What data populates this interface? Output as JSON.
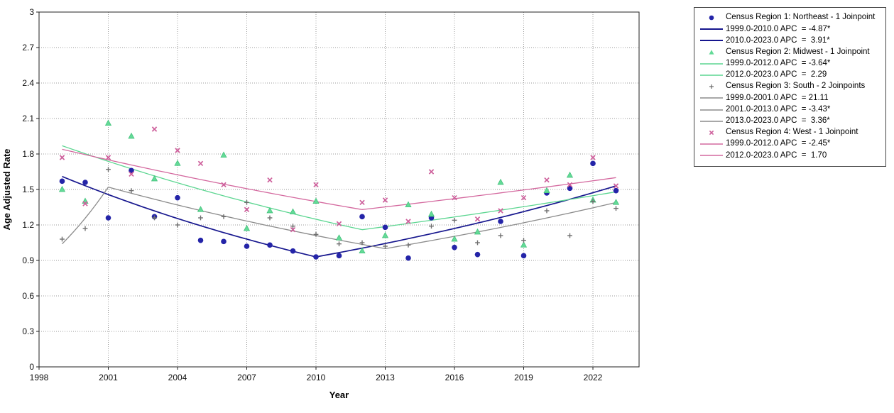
{
  "chart_data": {
    "type": "scatter",
    "title": "",
    "xlabel": "Year",
    "ylabel": "Age Adjusted Rate",
    "xlim": [
      1998,
      2024.0
    ],
    "ylim": [
      0,
      3
    ],
    "grid": true,
    "legend_position": "top-right",
    "xticks": [
      1998,
      2001,
      2004,
      2007,
      2010,
      2013,
      2016,
      2019,
      2022
    ],
    "yticks": [
      0,
      0.3,
      0.6,
      0.9,
      1.2,
      1.5,
      1.8,
      2.1,
      2.4,
      2.7,
      3
    ],
    "ytick_labels": [
      "0",
      "0.3",
      "0.6",
      "0.9",
      "1.2",
      "1.5",
      "1.8",
      "2.1",
      "2.4",
      "2.7",
      "3"
    ],
    "years": [
      1999,
      2000,
      2001,
      2002,
      2003,
      2004,
      2005,
      2006,
      2007,
      2008,
      2009,
      2010,
      2011,
      2012,
      2013,
      2014,
      2015,
      2016,
      2017,
      2018,
      2019,
      2020,
      2021,
      2022,
      2023
    ],
    "series": [
      {
        "key": "northeast",
        "legend_label": "Census Region 1: Northeast - 1 Joinpoint",
        "marker": "circle",
        "marker_color": "#2424a8",
        "line_color": "#16168e",
        "values": [
          1.57,
          1.56,
          1.26,
          1.66,
          1.27,
          1.43,
          1.07,
          1.06,
          1.02,
          1.03,
          0.98,
          0.93,
          0.94,
          1.27,
          1.18,
          0.92,
          1.26,
          1.01,
          0.95,
          1.23,
          0.94,
          1.47,
          1.51,
          1.72,
          1.49
        ],
        "segments": [
          {
            "label": "1999.0-2010.0 APC  = -4.87*",
            "apc": -4.87,
            "x0": 1999,
            "y0": 1.61,
            "x1": 2010,
            "y1": 0.93
          },
          {
            "label": "2010.0-2023.0 APC  =  3.91*",
            "apc": 3.91,
            "x0": 2010,
            "y0": 0.93,
            "x1": 2023,
            "y1": 1.53
          }
        ]
      },
      {
        "key": "midwest",
        "legend_label": "Census Region 2: Midwest - 1 Joinpoint",
        "marker": "triangle",
        "marker_color": "#63da97",
        "line_color": "#5cd691",
        "values": [
          1.5,
          1.4,
          2.06,
          1.95,
          1.59,
          1.72,
          1.33,
          1.79,
          1.17,
          1.32,
          1.31,
          1.4,
          1.09,
          0.98,
          1.11,
          1.37,
          1.29,
          1.08,
          1.14,
          1.56,
          1.03,
          1.49,
          1.62,
          1.41,
          1.39
        ],
        "segments": [
          {
            "label": "1999.0-2012.0 APC  = -3.64*",
            "apc": -3.64,
            "x0": 1999,
            "y0": 1.87,
            "x1": 2012,
            "y1": 1.16
          },
          {
            "label": "2012.0-2023.0 APC  =  2.29",
            "apc": 2.29,
            "x0": 2012,
            "y0": 1.16,
            "x1": 2023,
            "y1": 1.48
          }
        ]
      },
      {
        "key": "south",
        "legend_label": "Census Region 3: South - 2 Joinpoints",
        "marker": "plus",
        "marker_color": "#6f6f6f",
        "line_color": "#8b8b8b",
        "values": [
          1.08,
          1.17,
          1.67,
          1.49,
          1.26,
          1.2,
          1.26,
          1.27,
          1.39,
          1.26,
          1.19,
          1.12,
          1.04,
          1.05,
          1.02,
          1.03,
          1.19,
          1.24,
          1.05,
          1.11,
          1.07,
          1.32,
          1.11,
          1.4,
          1.34
        ],
        "segments": [
          {
            "label": "1999.0-2001.0 APC  = 21.11",
            "apc": 21.11,
            "x0": 1999,
            "y0": 1.04,
            "x1": 2001,
            "y1": 1.52
          },
          {
            "label": "2001.0-2013.0 APC  = -3.43*",
            "apc": -3.43,
            "x0": 2001,
            "y0": 1.52,
            "x1": 2013,
            "y1": 1.0
          },
          {
            "label": "2013.0-2023.0 APC  =  3.36*",
            "apc": 3.36,
            "x0": 2013,
            "y0": 1.0,
            "x1": 2023,
            "y1": 1.39
          }
        ]
      },
      {
        "key": "west",
        "legend_label": "Census Region 4: West - 1 Joinpoint",
        "marker": "x",
        "marker_color": "#cd5f9b",
        "line_color": "#d4699f",
        "values": [
          1.77,
          1.38,
          1.77,
          1.63,
          2.01,
          1.83,
          1.72,
          1.54,
          1.33,
          1.58,
          1.16,
          1.54,
          1.21,
          1.39,
          1.41,
          1.23,
          1.65,
          1.43,
          1.25,
          1.32,
          1.43,
          1.58,
          1.54,
          1.77,
          1.53
        ],
        "segments": [
          {
            "label": "1999.0-2012.0 APC  = -2.45*",
            "apc": -2.45,
            "x0": 1999,
            "y0": 1.84,
            "x1": 2012,
            "y1": 1.33
          },
          {
            "label": "2012.0-2023.0 APC  =  1.70",
            "apc": 1.7,
            "x0": 2012,
            "y0": 1.33,
            "x1": 2023,
            "y1": 1.6
          }
        ]
      }
    ]
  }
}
